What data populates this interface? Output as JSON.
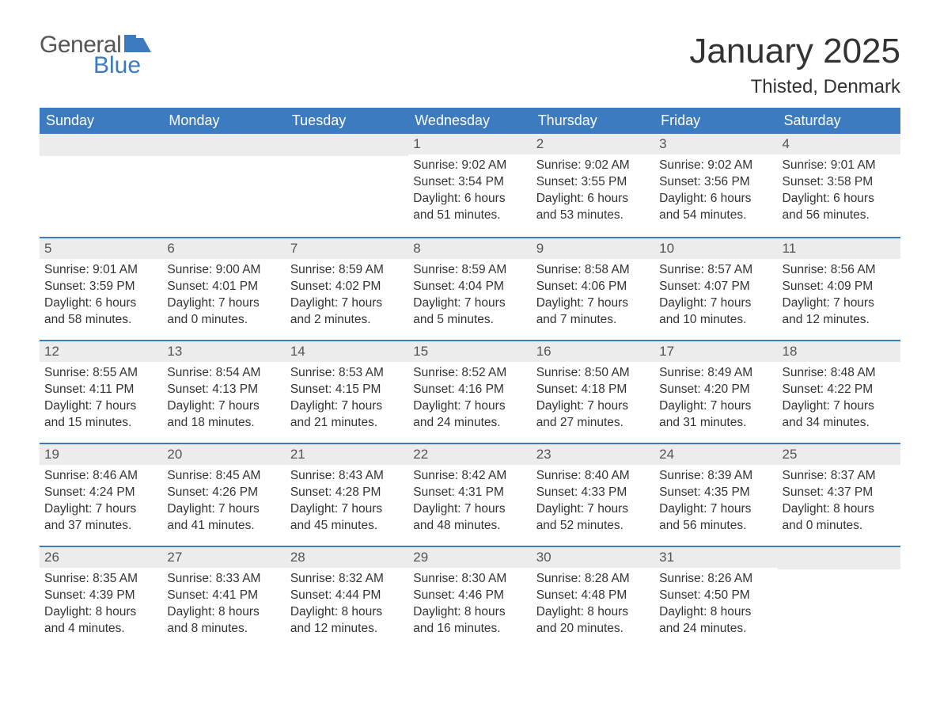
{
  "brand": {
    "text_general": "General",
    "text_blue": "Blue",
    "flag_color": "#3c7bbf",
    "general_color": "#555555"
  },
  "title": "January 2025",
  "location": "Thisted, Denmark",
  "colors": {
    "header_bg": "#3c7bbf",
    "header_text": "#ffffff",
    "daynum_bg": "#ececec",
    "row_border": "#3c7bbf",
    "body_text": "#333333"
  },
  "weekdays": [
    "Sunday",
    "Monday",
    "Tuesday",
    "Wednesday",
    "Thursday",
    "Friday",
    "Saturday"
  ],
  "weeks": [
    [
      {
        "day": null
      },
      {
        "day": null
      },
      {
        "day": null
      },
      {
        "day": "1",
        "sunrise": "Sunrise: 9:02 AM",
        "sunset": "Sunset: 3:54 PM",
        "daylight1": "Daylight: 6 hours",
        "daylight2": "and 51 minutes."
      },
      {
        "day": "2",
        "sunrise": "Sunrise: 9:02 AM",
        "sunset": "Sunset: 3:55 PM",
        "daylight1": "Daylight: 6 hours",
        "daylight2": "and 53 minutes."
      },
      {
        "day": "3",
        "sunrise": "Sunrise: 9:02 AM",
        "sunset": "Sunset: 3:56 PM",
        "daylight1": "Daylight: 6 hours",
        "daylight2": "and 54 minutes."
      },
      {
        "day": "4",
        "sunrise": "Sunrise: 9:01 AM",
        "sunset": "Sunset: 3:58 PM",
        "daylight1": "Daylight: 6 hours",
        "daylight2": "and 56 minutes."
      }
    ],
    [
      {
        "day": "5",
        "sunrise": "Sunrise: 9:01 AM",
        "sunset": "Sunset: 3:59 PM",
        "daylight1": "Daylight: 6 hours",
        "daylight2": "and 58 minutes."
      },
      {
        "day": "6",
        "sunrise": "Sunrise: 9:00 AM",
        "sunset": "Sunset: 4:01 PM",
        "daylight1": "Daylight: 7 hours",
        "daylight2": "and 0 minutes."
      },
      {
        "day": "7",
        "sunrise": "Sunrise: 8:59 AM",
        "sunset": "Sunset: 4:02 PM",
        "daylight1": "Daylight: 7 hours",
        "daylight2": "and 2 minutes."
      },
      {
        "day": "8",
        "sunrise": "Sunrise: 8:59 AM",
        "sunset": "Sunset: 4:04 PM",
        "daylight1": "Daylight: 7 hours",
        "daylight2": "and 5 minutes."
      },
      {
        "day": "9",
        "sunrise": "Sunrise: 8:58 AM",
        "sunset": "Sunset: 4:06 PM",
        "daylight1": "Daylight: 7 hours",
        "daylight2": "and 7 minutes."
      },
      {
        "day": "10",
        "sunrise": "Sunrise: 8:57 AM",
        "sunset": "Sunset: 4:07 PM",
        "daylight1": "Daylight: 7 hours",
        "daylight2": "and 10 minutes."
      },
      {
        "day": "11",
        "sunrise": "Sunrise: 8:56 AM",
        "sunset": "Sunset: 4:09 PM",
        "daylight1": "Daylight: 7 hours",
        "daylight2": "and 12 minutes."
      }
    ],
    [
      {
        "day": "12",
        "sunrise": "Sunrise: 8:55 AM",
        "sunset": "Sunset: 4:11 PM",
        "daylight1": "Daylight: 7 hours",
        "daylight2": "and 15 minutes."
      },
      {
        "day": "13",
        "sunrise": "Sunrise: 8:54 AM",
        "sunset": "Sunset: 4:13 PM",
        "daylight1": "Daylight: 7 hours",
        "daylight2": "and 18 minutes."
      },
      {
        "day": "14",
        "sunrise": "Sunrise: 8:53 AM",
        "sunset": "Sunset: 4:15 PM",
        "daylight1": "Daylight: 7 hours",
        "daylight2": "and 21 minutes."
      },
      {
        "day": "15",
        "sunrise": "Sunrise: 8:52 AM",
        "sunset": "Sunset: 4:16 PM",
        "daylight1": "Daylight: 7 hours",
        "daylight2": "and 24 minutes."
      },
      {
        "day": "16",
        "sunrise": "Sunrise: 8:50 AM",
        "sunset": "Sunset: 4:18 PM",
        "daylight1": "Daylight: 7 hours",
        "daylight2": "and 27 minutes."
      },
      {
        "day": "17",
        "sunrise": "Sunrise: 8:49 AM",
        "sunset": "Sunset: 4:20 PM",
        "daylight1": "Daylight: 7 hours",
        "daylight2": "and 31 minutes."
      },
      {
        "day": "18",
        "sunrise": "Sunrise: 8:48 AM",
        "sunset": "Sunset: 4:22 PM",
        "daylight1": "Daylight: 7 hours",
        "daylight2": "and 34 minutes."
      }
    ],
    [
      {
        "day": "19",
        "sunrise": "Sunrise: 8:46 AM",
        "sunset": "Sunset: 4:24 PM",
        "daylight1": "Daylight: 7 hours",
        "daylight2": "and 37 minutes."
      },
      {
        "day": "20",
        "sunrise": "Sunrise: 8:45 AM",
        "sunset": "Sunset: 4:26 PM",
        "daylight1": "Daylight: 7 hours",
        "daylight2": "and 41 minutes."
      },
      {
        "day": "21",
        "sunrise": "Sunrise: 8:43 AM",
        "sunset": "Sunset: 4:28 PM",
        "daylight1": "Daylight: 7 hours",
        "daylight2": "and 45 minutes."
      },
      {
        "day": "22",
        "sunrise": "Sunrise: 8:42 AM",
        "sunset": "Sunset: 4:31 PM",
        "daylight1": "Daylight: 7 hours",
        "daylight2": "and 48 minutes."
      },
      {
        "day": "23",
        "sunrise": "Sunrise: 8:40 AM",
        "sunset": "Sunset: 4:33 PM",
        "daylight1": "Daylight: 7 hours",
        "daylight2": "and 52 minutes."
      },
      {
        "day": "24",
        "sunrise": "Sunrise: 8:39 AM",
        "sunset": "Sunset: 4:35 PM",
        "daylight1": "Daylight: 7 hours",
        "daylight2": "and 56 minutes."
      },
      {
        "day": "25",
        "sunrise": "Sunrise: 8:37 AM",
        "sunset": "Sunset: 4:37 PM",
        "daylight1": "Daylight: 8 hours",
        "daylight2": "and 0 minutes."
      }
    ],
    [
      {
        "day": "26",
        "sunrise": "Sunrise: 8:35 AM",
        "sunset": "Sunset: 4:39 PM",
        "daylight1": "Daylight: 8 hours",
        "daylight2": "and 4 minutes."
      },
      {
        "day": "27",
        "sunrise": "Sunrise: 8:33 AM",
        "sunset": "Sunset: 4:41 PM",
        "daylight1": "Daylight: 8 hours",
        "daylight2": "and 8 minutes."
      },
      {
        "day": "28",
        "sunrise": "Sunrise: 8:32 AM",
        "sunset": "Sunset: 4:44 PM",
        "daylight1": "Daylight: 8 hours",
        "daylight2": "and 12 minutes."
      },
      {
        "day": "29",
        "sunrise": "Sunrise: 8:30 AM",
        "sunset": "Sunset: 4:46 PM",
        "daylight1": "Daylight: 8 hours",
        "daylight2": "and 16 minutes."
      },
      {
        "day": "30",
        "sunrise": "Sunrise: 8:28 AM",
        "sunset": "Sunset: 4:48 PM",
        "daylight1": "Daylight: 8 hours",
        "daylight2": "and 20 minutes."
      },
      {
        "day": "31",
        "sunrise": "Sunrise: 8:26 AM",
        "sunset": "Sunset: 4:50 PM",
        "daylight1": "Daylight: 8 hours",
        "daylight2": "and 24 minutes."
      },
      {
        "day": null
      }
    ]
  ]
}
